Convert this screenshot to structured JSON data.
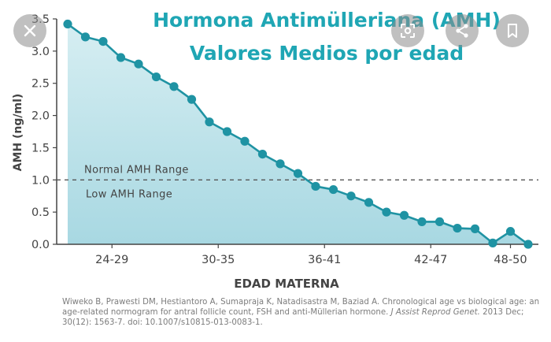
{
  "chart_data": {
    "type": "area",
    "title_line1": "Hormona Antimülleriana (AMH)",
    "title_line2": "Valores Medios por edad",
    "xlabel": "EDAD MATERNA",
    "ylabel": "AMH (ng/ml)",
    "x_ticks": [
      "24-29",
      "30-35",
      "36-41",
      "42-47",
      "48-50"
    ],
    "y_ticks": [
      "0.0",
      "0.5",
      "1.0",
      "1.5",
      "2.0",
      "2.5",
      "3.0",
      "3.5"
    ],
    "ylim": [
      0,
      3.5
    ],
    "age_range": [
      24,
      50
    ],
    "reference_line": {
      "value": 1.0,
      "label_above": "Normal AMH Range",
      "label_below": "Low AMH Range"
    },
    "series": [
      {
        "x": [
          24,
          25,
          26,
          27,
          28,
          29,
          30,
          31,
          32,
          33,
          34,
          35,
          36,
          37,
          38,
          39,
          40,
          41,
          42,
          43,
          44,
          45,
          46,
          47,
          48,
          49,
          50
        ],
        "values": [
          3.42,
          3.22,
          3.15,
          2.9,
          2.8,
          2.6,
          2.45,
          2.25,
          1.9,
          1.75,
          1.6,
          1.4,
          1.25,
          1.1,
          0.9,
          0.85,
          0.75,
          0.65,
          0.5,
          0.45,
          0.35,
          0.35,
          0.25,
          0.24,
          0.02,
          0.2,
          0.0
        ]
      }
    ],
    "grid": false,
    "colors": {
      "title": "#1fa6b4",
      "line": "#1f93a3",
      "fill_top": "#cde9ee",
      "fill_bottom": "#a9d9e3",
      "axis": "#444444",
      "dash": "#555555"
    }
  },
  "citation": {
    "authors": "Wiweko B, Prawesti DM, Hestiantoro A, Sumapraja K, Natadisastra M, Baziad A. Chronological age vs biological age: an age-related normogram for antral follicle count, FSH and anti-Müllerian hormone.",
    "journal": "J Assist Reprod Genet.",
    "details": " 2013 Dec; 30(12): 1563-7. doi: 10.1007/s10815-013-0083-1."
  },
  "overlay_icons": [
    "close-icon",
    "lens-icon",
    "share-icon",
    "bookmark-icon"
  ]
}
